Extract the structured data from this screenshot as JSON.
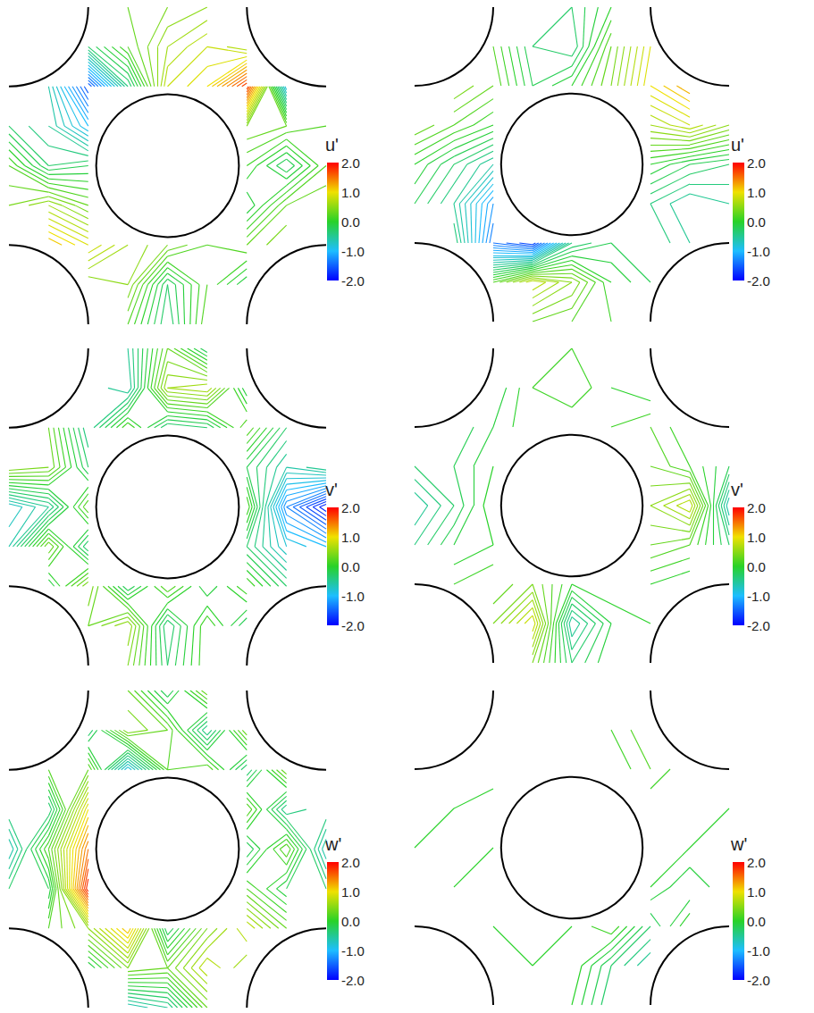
{
  "chart_data": [
    {
      "type": "contour",
      "tick_labels": false,
      "xlim": [
        0,
        1
      ],
      "ylim": [
        0,
        1
      ],
      "x": [
        0,
        0.125,
        0.25,
        0.375,
        0.5,
        0.625,
        0.75,
        0.875,
        1
      ],
      "y": [
        0,
        0.125,
        0.25,
        0.375,
        0.5,
        0.625,
        0.75,
        0.875,
        1
      ],
      "values": [
        [
          null,
          null,
          null,
          0.3,
          0.4,
          0.5,
          null,
          null,
          null
        ],
        [
          null,
          null,
          -0.3,
          0.2,
          0.6,
          0.8,
          0.6,
          null,
          null
        ],
        [
          null,
          -0.6,
          -1.6,
          -0.4,
          0.8,
          1.0,
          1.8,
          -0.9,
          null
        ],
        [
          -0.3,
          -0.5,
          -1.0,
          null,
          null,
          null,
          0.4,
          0.3,
          0.2
        ],
        [
          0.2,
          -0.3,
          -0.2,
          null,
          null,
          null,
          0.1,
          -0.3,
          0.2
        ],
        [
          0.4,
          0.6,
          0.3,
          null,
          null,
          null,
          -0.2,
          0.3,
          0.4
        ],
        [
          null,
          1.2,
          0.9,
          0.6,
          0.4,
          0.2,
          0.3,
          0.5,
          null
        ],
        [
          null,
          null,
          0.4,
          0.5,
          -0.3,
          0.2,
          -0.2,
          null,
          null
        ],
        [
          null,
          null,
          null,
          0.2,
          -0.4,
          0.3,
          null,
          null,
          null
        ]
      ],
      "colorbar": {
        "title": "u'",
        "range": [
          -2,
          2
        ],
        "ticks": [
          {
            "value": 2,
            "label": "2.0"
          },
          {
            "value": 1,
            "label": "1.0"
          },
          {
            "value": 0,
            "label": "0.0"
          },
          {
            "value": -1,
            "label": "-1.0"
          },
          {
            "value": -2,
            "label": "-2.0"
          }
        ]
      }
    },
    {
      "type": "contour",
      "tick_labels": false,
      "xlim": [
        0,
        1
      ],
      "ylim": [
        0,
        1
      ],
      "x": [
        0,
        0.125,
        0.25,
        0.375,
        0.5,
        0.625,
        0.75,
        0.875,
        1
      ],
      "y": [
        0,
        0.125,
        0.25,
        0.375,
        0.5,
        0.625,
        0.75,
        0.875,
        1
      ],
      "values": [
        [
          null,
          null,
          null,
          -0.2,
          -0.3,
          0.0,
          null,
          null,
          null
        ],
        [
          null,
          null,
          0.2,
          -0.3,
          -0.4,
          0.3,
          0.9,
          null,
          null
        ],
        [
          null,
          0.5,
          0.3,
          -0.2,
          0.0,
          0.4,
          1.0,
          1.3,
          null
        ],
        [
          0.4,
          0.2,
          0.0,
          null,
          null,
          null,
          0.6,
          0.8,
          0.5
        ],
        [
          0.0,
          -0.3,
          -0.6,
          null,
          null,
          null,
          0.0,
          -0.2,
          -0.3
        ],
        [
          -0.2,
          -0.5,
          -1.2,
          null,
          null,
          null,
          -0.4,
          -0.6,
          -0.5
        ],
        [
          null,
          -0.3,
          -1.4,
          -1.7,
          -0.4,
          -0.2,
          -0.3,
          -0.5,
          null
        ],
        [
          null,
          null,
          0.2,
          0.8,
          0.5,
          0.0,
          -0.2,
          null,
          null
        ],
        [
          null,
          null,
          null,
          0.3,
          0.2,
          0.1,
          null,
          null,
          null
        ]
      ],
      "colorbar": {
        "title": "u'",
        "range": [
          -2,
          2
        ],
        "ticks": [
          {
            "value": 2,
            "label": "2.0"
          },
          {
            "value": 1,
            "label": "1.0"
          },
          {
            "value": 0,
            "label": "0.0"
          },
          {
            "value": -1,
            "label": "-1.0"
          },
          {
            "value": -2,
            "label": "-2.0"
          }
        ]
      }
    },
    {
      "type": "contour",
      "tick_labels": false,
      "xlim": [
        0,
        1
      ],
      "ylim": [
        0,
        1
      ],
      "x": [
        0,
        0.125,
        0.25,
        0.375,
        0.5,
        0.625,
        0.75,
        0.875,
        1
      ],
      "y": [
        0,
        0.125,
        0.25,
        0.375,
        0.5,
        0.625,
        0.75,
        0.875,
        1
      ],
      "values": [
        [
          null,
          null,
          null,
          -0.5,
          0.3,
          -0.3,
          null,
          null,
          null
        ],
        [
          null,
          null,
          -0.4,
          -0.6,
          0.6,
          0.7,
          -0.2,
          null,
          null
        ],
        [
          null,
          0.3,
          -0.5,
          0.2,
          -0.4,
          -0.3,
          0.3,
          -0.3,
          null
        ],
        [
          0.5,
          0.4,
          -0.3,
          null,
          null,
          null,
          -0.2,
          -0.6,
          -0.4
        ],
        [
          -0.8,
          -0.5,
          0.3,
          null,
          null,
          null,
          0.2,
          -1.3,
          -1.9
        ],
        [
          -0.6,
          0.4,
          -0.4,
          null,
          null,
          null,
          -0.3,
          -0.8,
          -1.0
        ],
        [
          null,
          -0.2,
          0.5,
          -0.3,
          0.3,
          -0.2,
          0.2,
          -0.3,
          null
        ],
        [
          null,
          null,
          0.3,
          0.6,
          -0.4,
          0.2,
          -0.3,
          null,
          null
        ],
        [
          null,
          null,
          null,
          0.4,
          -0.3,
          0.2,
          null,
          null,
          null
        ]
      ],
      "colorbar": {
        "title": "v'",
        "range": [
          -2,
          2
        ],
        "ticks": [
          {
            "value": 2,
            "label": "2.0"
          },
          {
            "value": 1,
            "label": "1.0"
          },
          {
            "value": 0,
            "label": "0.0"
          },
          {
            "value": -1,
            "label": "-1.0"
          },
          {
            "value": -2,
            "label": "-2.0"
          }
        ]
      }
    },
    {
      "type": "contour",
      "tick_labels": false,
      "xlim": [
        0,
        1
      ],
      "ylim": [
        0,
        1
      ],
      "x": [
        0,
        0.125,
        0.25,
        0.375,
        0.5,
        0.625,
        0.75,
        0.875,
        1
      ],
      "y": [
        0,
        0.125,
        0.25,
        0.375,
        0.5,
        0.625,
        0.75,
        0.875,
        1
      ],
      "values": [
        [
          null,
          null,
          null,
          0.0,
          0.1,
          0.0,
          null,
          null,
          null
        ],
        [
          null,
          null,
          -0.2,
          0.1,
          0.2,
          0.0,
          -0.1,
          null,
          null
        ],
        [
          null,
          -0.3,
          -0.1,
          0.1,
          0.0,
          0.1,
          0.2,
          0.0,
          null
        ],
        [
          -0.3,
          -0.2,
          0.0,
          null,
          null,
          null,
          0.3,
          0.1,
          -0.2
        ],
        [
          -0.6,
          -0.3,
          0.1,
          null,
          null,
          null,
          0.5,
          0.8,
          -0.7
        ],
        [
          -0.4,
          -0.1,
          0.0,
          null,
          null,
          null,
          0.3,
          0.2,
          -0.3
        ],
        [
          null,
          0.1,
          0.2,
          0.4,
          0.0,
          0.1,
          0.0,
          -0.1,
          null
        ],
        [
          null,
          null,
          0.4,
          0.9,
          -0.6,
          -0.1,
          0.0,
          null,
          null
        ],
        [
          null,
          null,
          null,
          0.4,
          -0.3,
          0.0,
          null,
          null,
          null
        ]
      ],
      "colorbar": {
        "title": "v'",
        "range": [
          -2,
          2
        ],
        "ticks": [
          {
            "value": 2,
            "label": "2.0"
          },
          {
            "value": 1,
            "label": "1.0"
          },
          {
            "value": 0,
            "label": "0.0"
          },
          {
            "value": -1,
            "label": "-1.0"
          },
          {
            "value": -2,
            "label": "-2.0"
          }
        ]
      }
    },
    {
      "type": "contour",
      "tick_labels": false,
      "xlim": [
        0,
        1
      ],
      "ylim": [
        0,
        1
      ],
      "x": [
        0,
        0.125,
        0.25,
        0.375,
        0.5,
        0.625,
        0.75,
        0.875,
        1
      ],
      "y": [
        0,
        0.125,
        0.25,
        0.375,
        0.5,
        0.625,
        0.75,
        0.875,
        1
      ],
      "values": [
        [
          null,
          null,
          null,
          0.3,
          -0.3,
          0.4,
          null,
          null,
          null
        ],
        [
          null,
          null,
          -0.4,
          0.5,
          0.3,
          -0.5,
          0.4,
          null,
          null
        ],
        [
          null,
          0.2,
          0.3,
          -0.9,
          0.2,
          0.3,
          -0.4,
          0.4,
          null
        ],
        [
          -0.3,
          -0.4,
          1.0,
          null,
          null,
          null,
          0.3,
          -0.5,
          -0.3
        ],
        [
          -0.7,
          0.2,
          1.5,
          null,
          null,
          null,
          -0.3,
          0.3,
          -0.7
        ],
        [
          -0.3,
          -0.2,
          1.9,
          null,
          null,
          null,
          0.2,
          -0.2,
          -0.3
        ],
        [
          null,
          0.2,
          0.5,
          1.2,
          -0.3,
          0.4,
          0.8,
          0.3,
          null
        ],
        [
          null,
          null,
          -0.2,
          0.4,
          0.3,
          0.8,
          0.5,
          null,
          null
        ],
        [
          null,
          null,
          null,
          -0.7,
          -0.5,
          0.3,
          null,
          null,
          null
        ]
      ],
      "colorbar": {
        "title": "w'",
        "range": [
          -2,
          2
        ],
        "ticks": [
          {
            "value": 2,
            "label": "2.0"
          },
          {
            "value": 1,
            "label": "1.0"
          },
          {
            "value": 0,
            "label": "0.0"
          },
          {
            "value": -1,
            "label": "-1.0"
          },
          {
            "value": -2,
            "label": "-2.0"
          }
        ]
      }
    },
    {
      "type": "contour",
      "tick_labels": false,
      "xlim": [
        0,
        1
      ],
      "ylim": [
        0,
        1
      ],
      "x": [
        0,
        0.125,
        0.25,
        0.375,
        0.5,
        0.625,
        0.75,
        0.875,
        1
      ],
      "y": [
        0,
        0.125,
        0.25,
        0.375,
        0.5,
        0.625,
        0.75,
        0.875,
        1
      ],
      "values": [
        [
          null,
          null,
          null,
          0.0,
          0.0,
          0.1,
          null,
          null,
          null
        ],
        [
          null,
          null,
          0.0,
          0.1,
          0.0,
          0.1,
          0.3,
          null,
          null
        ],
        [
          null,
          0.0,
          0.1,
          0.0,
          0.0,
          0.0,
          0.2,
          0.0,
          null
        ],
        [
          0.1,
          0.0,
          -0.1,
          null,
          null,
          null,
          0.0,
          0.1,
          0.0
        ],
        [
          0.0,
          -0.1,
          0.0,
          null,
          null,
          null,
          0.1,
          0.0,
          -0.1
        ],
        [
          -0.1,
          0.0,
          0.1,
          null,
          null,
          null,
          0.0,
          -0.2,
          0.0
        ],
        [
          null,
          0.1,
          0.0,
          -0.1,
          0.0,
          0.2,
          -0.3,
          0.1,
          null
        ],
        [
          null,
          null,
          0.0,
          0.0,
          0.1,
          -0.3,
          -0.6,
          null,
          null
        ],
        [
          null,
          null,
          null,
          0.0,
          0.0,
          -0.4,
          null,
          null,
          null
        ]
      ],
      "colorbar": {
        "title": "w'",
        "range": [
          -2,
          2
        ],
        "ticks": [
          {
            "value": 2,
            "label": "2.0"
          },
          {
            "value": 1,
            "label": "1.0"
          },
          {
            "value": 0,
            "label": "0.0"
          },
          {
            "value": -1,
            "label": "-1.0"
          },
          {
            "value": -2,
            "label": "-2.0"
          }
        ]
      }
    }
  ]
}
